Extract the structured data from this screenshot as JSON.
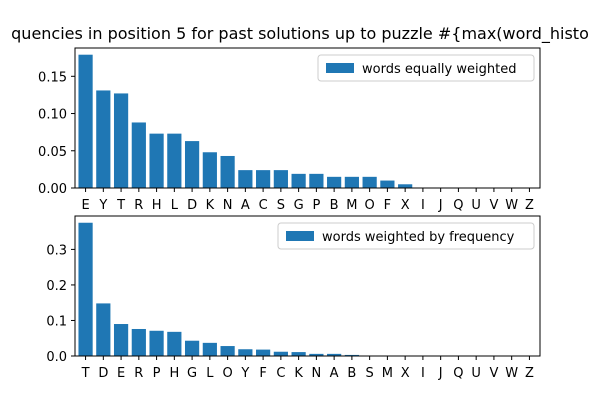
{
  "figure": {
    "title": "quencies in position 5 for past solutions up to puzzle #{max(word_histo"
  },
  "colors": {
    "bar": "#1f77b4",
    "legend_border": "#cccccc"
  },
  "chart_data": [
    {
      "type": "bar",
      "categories": [
        "E",
        "Y",
        "T",
        "R",
        "H",
        "L",
        "D",
        "K",
        "N",
        "A",
        "C",
        "S",
        "G",
        "P",
        "B",
        "M",
        "O",
        "F",
        "X",
        "I",
        "J",
        "Q",
        "U",
        "V",
        "W",
        "Z"
      ],
      "series": [
        {
          "name": "words equally weighted",
          "values": [
            0.179,
            0.131,
            0.127,
            0.088,
            0.073,
            0.073,
            0.063,
            0.048,
            0.043,
            0.024,
            0.024,
            0.024,
            0.019,
            0.019,
            0.015,
            0.015,
            0.015,
            0.01,
            0.005,
            0,
            0,
            0,
            0,
            0,
            0,
            0
          ]
        }
      ],
      "yticks": [
        0.0,
        0.05,
        0.1,
        0.15
      ],
      "ytick_labels": [
        "0.00",
        "0.05",
        "0.10",
        "0.15"
      ],
      "ylim": [
        0,
        0.188
      ],
      "legend": "top-right",
      "xlabel": "",
      "ylabel": ""
    },
    {
      "type": "bar",
      "categories": [
        "T",
        "D",
        "E",
        "R",
        "P",
        "H",
        "G",
        "L",
        "O",
        "Y",
        "F",
        "C",
        "K",
        "N",
        "A",
        "B",
        "S",
        "M",
        "X",
        "I",
        "J",
        "Q",
        "U",
        "V",
        "W",
        "Z"
      ],
      "series": [
        {
          "name": "words weighted by frequency",
          "values": [
            0.375,
            0.148,
            0.09,
            0.076,
            0.071,
            0.068,
            0.043,
            0.037,
            0.028,
            0.019,
            0.018,
            0.012,
            0.011,
            0.006,
            0.006,
            0.003,
            0,
            0,
            0,
            0,
            0,
            0,
            0,
            0,
            0,
            0
          ]
        }
      ],
      "yticks": [
        0.0,
        0.1,
        0.2,
        0.3
      ],
      "ytick_labels": [
        "0.0",
        "0.1",
        "0.2",
        "0.3"
      ],
      "ylim": [
        0,
        0.394
      ],
      "legend": "top-right",
      "xlabel": "",
      "ylabel": ""
    }
  ]
}
